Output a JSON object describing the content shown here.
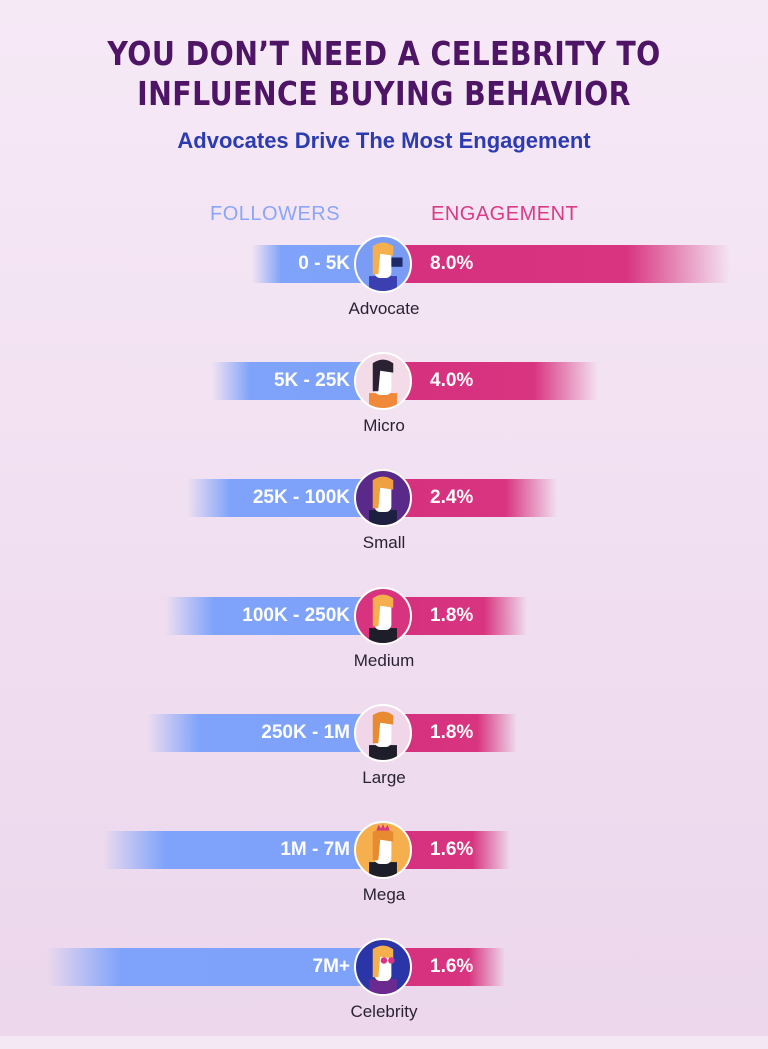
{
  "title_line1": "YOU DON’T NEED A CELEBRITY TO",
  "title_line2": "INFLUENCE BUYING BEHAVIOR",
  "subtitle": "Advocates Drive The Most Engagement",
  "legend": {
    "followers": "FOLLOWERS",
    "engagement": "ENGAGEMENT"
  },
  "colors": {
    "followers": "#7fa3fa",
    "engagement": "#d8347f",
    "title": "#4e1466",
    "subtitle": "#2d3bb0"
  },
  "chart_data": {
    "type": "bar",
    "categories": [
      "Advocate",
      "Micro",
      "Small",
      "Medium",
      "Large",
      "Mega",
      "Celebrity"
    ],
    "followers": [
      "0 - 5K",
      "5K - 25K",
      "25K - 100K",
      "100K - 250K",
      "250K - 1M",
      "1M - 7M",
      "7M+"
    ],
    "engagement_labels": [
      "8.0%",
      "4.0%",
      "2.4%",
      "1.8%",
      "1.8%",
      "1.6%",
      "1.6%"
    ],
    "series": [
      {
        "name": "ENGAGEMENT",
        "values": [
          8.0,
          4.0,
          2.4,
          1.8,
          1.8,
          1.6,
          1.6
        ]
      }
    ],
    "avatars": [
      {
        "icon": "advocate-megaphone-icon",
        "bg": "#7b9cf5"
      },
      {
        "icon": "micro-influencer-icon",
        "bg": "#f3dbe8"
      },
      {
        "icon": "small-influencer-camera-icon",
        "bg": "#5a2a8a"
      },
      {
        "icon": "medium-influencer-icon",
        "bg": "#d8337f"
      },
      {
        "icon": "large-influencer-microphone-icon",
        "bg": "#f1d6ea"
      },
      {
        "icon": "mega-influencer-crown-icon",
        "bg": "#f5b04d"
      },
      {
        "icon": "celebrity-sunglasses-icon",
        "bg": "#2a35a8"
      }
    ]
  }
}
